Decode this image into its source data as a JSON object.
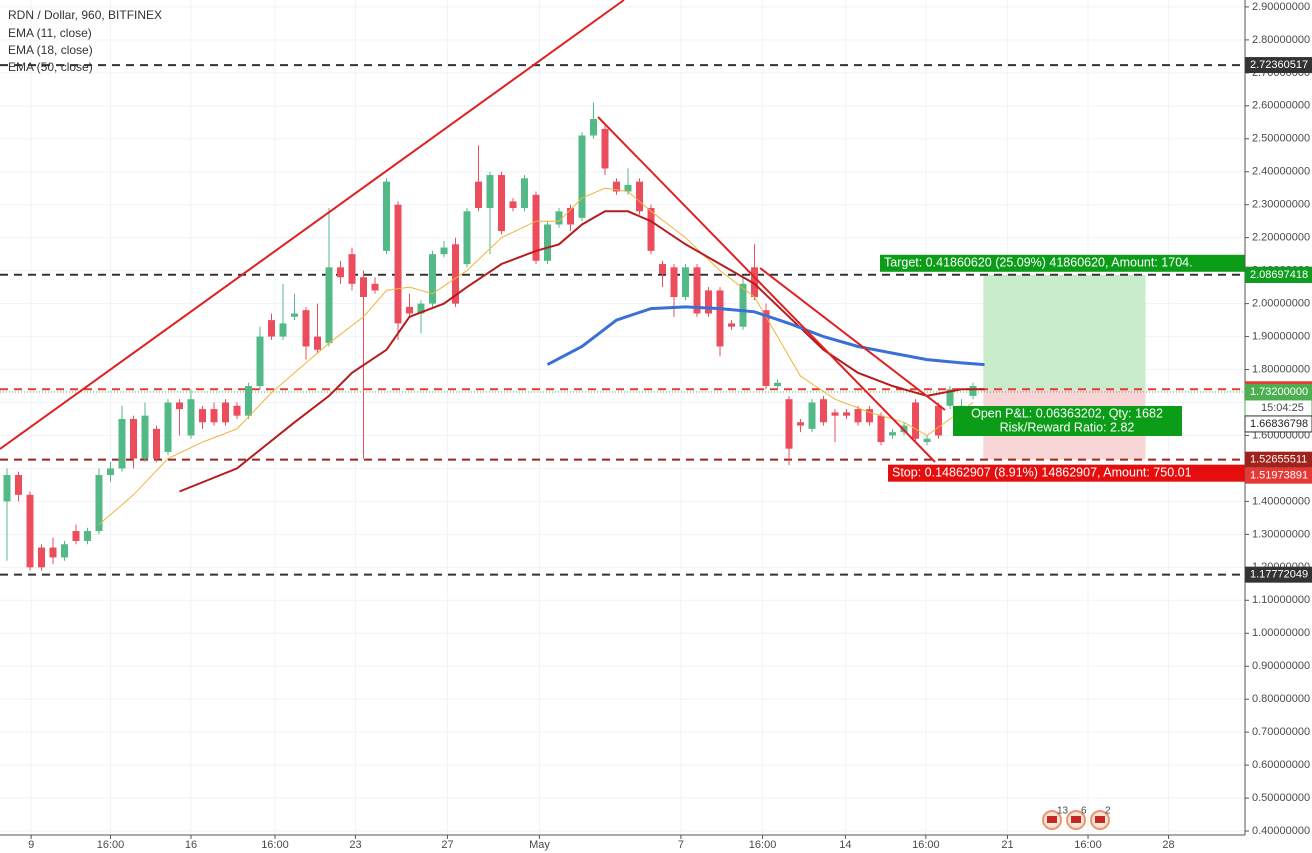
{
  "chart_data": {
    "type": "candlestick",
    "title": "RDN / Dollar, 960, BITFINEX",
    "up_color": "#53b987",
    "down_color": "#eb4d5c",
    "candles": {
      "open": [
        1.4,
        1.48,
        1.42,
        1.26,
        1.26,
        1.23,
        1.31,
        1.28,
        1.31,
        1.48,
        1.5,
        1.65,
        1.53,
        1.62,
        1.55,
        1.7,
        1.6,
        1.68,
        1.68,
        1.7,
        1.69,
        1.66,
        1.75,
        1.95,
        1.9,
        1.96,
        1.98,
        1.9,
        1.88,
        2.11,
        2.15,
        2.08,
        2.06,
        2.16,
        2.3,
        1.99,
        1.97,
        2.0,
        2.15,
        2.18,
        2.12,
        2.37,
        2.29,
        2.39,
        2.31,
        2.29,
        2.33,
        2.13,
        2.24,
        2.29,
        2.26,
        2.51,
        2.53,
        2.37,
        2.34,
        2.37,
        2.29,
        2.12,
        2.11,
        2.02,
        2.11,
        2.04,
        2.04,
        1.94,
        1.93,
        2.11,
        1.98,
        1.75,
        1.71,
        1.64,
        1.62,
        1.71,
        1.67,
        1.67,
        1.68,
        1.68,
        1.66,
        1.6,
        1.61,
        1.7,
        1.58,
        1.69,
        1.69,
        1.67,
        1.72
      ],
      "high": [
        1.5,
        1.49,
        1.43,
        1.27,
        1.29,
        1.28,
        1.33,
        1.32,
        1.5,
        1.52,
        1.69,
        1.66,
        1.7,
        1.63,
        1.71,
        1.71,
        1.74,
        1.69,
        1.7,
        1.71,
        1.7,
        1.76,
        1.93,
        1.97,
        2.06,
        2.03,
        1.99,
        2.0,
        2.29,
        2.13,
        2.17,
        2.1,
        2.08,
        2.38,
        2.31,
        2.03,
        2.01,
        2.16,
        2.19,
        2.2,
        2.29,
        2.48,
        2.4,
        2.4,
        2.32,
        2.39,
        2.34,
        2.25,
        2.29,
        2.3,
        2.52,
        2.61,
        2.54,
        2.38,
        2.41,
        2.38,
        2.3,
        2.13,
        2.12,
        2.12,
        2.12,
        2.05,
        2.05,
        1.95,
        2.08,
        2.18,
        2.0,
        1.77,
        1.72,
        1.65,
        1.71,
        1.72,
        1.68,
        1.68,
        1.69,
        1.69,
        1.67,
        1.62,
        1.64,
        1.71,
        1.6,
        1.7,
        1.75,
        1.71,
        1.76
      ],
      "low": [
        1.22,
        1.4,
        1.19,
        1.19,
        1.21,
        1.22,
        1.27,
        1.27,
        1.3,
        1.46,
        1.49,
        1.5,
        1.52,
        1.52,
        1.54,
        1.6,
        1.59,
        1.62,
        1.63,
        1.63,
        1.65,
        1.65,
        1.74,
        1.89,
        1.89,
        1.95,
        1.83,
        1.85,
        1.87,
        2.06,
        2.04,
        1.53,
        2.03,
        2.15,
        1.89,
        1.96,
        1.91,
        1.99,
        2.14,
        1.99,
        2.11,
        2.28,
        2.15,
        2.21,
        2.28,
        2.28,
        2.12,
        2.12,
        2.23,
        2.22,
        2.25,
        2.5,
        2.39,
        2.33,
        2.33,
        2.27,
        2.15,
        2.05,
        1.96,
        2.01,
        1.96,
        1.96,
        1.84,
        1.92,
        1.92,
        2.01,
        1.74,
        1.74,
        1.51,
        1.61,
        1.61,
        1.63,
        1.58,
        1.65,
        1.63,
        1.63,
        1.57,
        1.59,
        1.6,
        1.58,
        1.57,
        1.59,
        1.68,
        1.66,
        1.71
      ],
      "close": [
        1.48,
        1.42,
        1.2,
        1.2,
        1.23,
        1.27,
        1.28,
        1.31,
        1.48,
        1.5,
        1.65,
        1.53,
        1.66,
        1.53,
        1.7,
        1.68,
        1.71,
        1.64,
        1.64,
        1.64,
        1.66,
        1.75,
        1.9,
        1.9,
        1.94,
        1.97,
        1.87,
        1.86,
        2.11,
        2.08,
        2.06,
        2.02,
        2.04,
        2.37,
        1.94,
        1.97,
        2.0,
        2.15,
        2.17,
        2.0,
        2.28,
        2.29,
        2.39,
        2.22,
        2.29,
        2.38,
        2.13,
        2.24,
        2.28,
        2.24,
        2.51,
        2.56,
        2.41,
        2.34,
        2.36,
        2.28,
        2.16,
        2.09,
        2.02,
        2.11,
        1.97,
        1.97,
        1.87,
        1.93,
        2.06,
        2.02,
        1.75,
        1.76,
        1.56,
        1.63,
        1.7,
        1.64,
        1.66,
        1.66,
        1.64,
        1.64,
        1.58,
        1.61,
        1.63,
        1.59,
        1.59,
        1.6,
        1.74,
        1.69,
        1.75
      ]
    },
    "series": [
      {
        "name": "EMA (11, close)",
        "color": "#f0b43c",
        "x": [
          8,
          11,
          14,
          17,
          20,
          23,
          26,
          28,
          31,
          33,
          35,
          37,
          40,
          43,
          46,
          48,
          50,
          52,
          54,
          56,
          59,
          62,
          65,
          67,
          69,
          72,
          75,
          78,
          80,
          82,
          84
        ],
        "values": [
          1.33,
          1.42,
          1.53,
          1.58,
          1.62,
          1.73,
          1.82,
          1.88,
          1.96,
          2.04,
          2.05,
          2.03,
          2.1,
          2.2,
          2.25,
          2.25,
          2.32,
          2.35,
          2.34,
          2.28,
          2.2,
          2.1,
          2.02,
          1.9,
          1.78,
          1.71,
          1.67,
          1.64,
          1.6,
          1.65,
          1.7
        ]
      },
      {
        "name": "EMA (18, close)",
        "color": "#b71c1c",
        "x": [
          15,
          20,
          25,
          28,
          30,
          33,
          35,
          38,
          40,
          43,
          46,
          48,
          50,
          52,
          54,
          56,
          59,
          62,
          65,
          68,
          71,
          74,
          77,
          80,
          83,
          85
        ],
        "values": [
          1.43,
          1.5,
          1.64,
          1.72,
          1.79,
          1.86,
          1.96,
          2.0,
          2.05,
          2.12,
          2.16,
          2.18,
          2.24,
          2.28,
          2.28,
          2.25,
          2.18,
          2.12,
          2.06,
          1.96,
          1.86,
          1.79,
          1.75,
          1.72,
          1.74,
          1.74
        ]
      },
      {
        "name": "EMA (50, close)",
        "color": "#3a6fd8",
        "x": [
          47,
          50,
          53,
          56,
          59,
          62,
          65,
          68,
          71,
          74,
          77,
          80,
          83,
          85
        ],
        "values": [
          1.815,
          1.87,
          1.95,
          1.985,
          1.99,
          1.985,
          1.975,
          1.94,
          1.9,
          1.87,
          1.85,
          1.83,
          1.82,
          1.815
        ]
      }
    ],
    "xlim": [
      -0.6087,
      107.65
    ],
    "xticks": [
      {
        "value": 2.1,
        "label": "9"
      },
      {
        "value": 9,
        "label": "16:00"
      },
      {
        "value": 16,
        "label": "16"
      },
      {
        "value": 23.3,
        "label": "16:00"
      },
      {
        "value": 30.3,
        "label": "23"
      },
      {
        "value": 38.3,
        "label": "27"
      },
      {
        "value": 46.3,
        "label": "May"
      },
      {
        "value": 58.6,
        "label": "7"
      },
      {
        "value": 65.7,
        "label": "16:00"
      },
      {
        "value": 72.9,
        "label": "14"
      },
      {
        "value": 79.9,
        "label": "16:00"
      },
      {
        "value": 87,
        "label": "21"
      },
      {
        "value": 94,
        "label": "16:00"
      },
      {
        "value": 101,
        "label": "28"
      }
    ],
    "ylim": [
      0.388,
      2.921
    ],
    "yticks": [
      {
        "value": 0.4,
        "label": "0.40000000"
      },
      {
        "value": 0.5,
        "label": "0.50000000"
      },
      {
        "value": 0.6,
        "label": "0.60000000"
      },
      {
        "value": 0.7,
        "label": "0.70000000"
      },
      {
        "value": 0.8,
        "label": "0.80000000"
      },
      {
        "value": 0.9,
        "label": "0.90000000"
      },
      {
        "value": 1.0,
        "label": "1.00000000"
      },
      {
        "value": 1.1,
        "label": "1.10000000"
      },
      {
        "value": 1.2,
        "label": "1.20000000"
      },
      {
        "value": 1.3,
        "label": "1.30000000"
      },
      {
        "value": 1.4,
        "label": "1.40000000"
      },
      {
        "value": 1.5,
        "label": "1.50000000"
      },
      {
        "value": 1.6,
        "label": "1.60000000"
      },
      {
        "value": 1.7,
        "label": "1.70000000"
      },
      {
        "value": 1.8,
        "label": "1.80000000"
      },
      {
        "value": 1.9,
        "label": "1.90000000"
      },
      {
        "value": 2.0,
        "label": "2.00000000"
      },
      {
        "value": 2.1,
        "label": "2.10000000"
      },
      {
        "value": 2.2,
        "label": "2.20000000"
      },
      {
        "value": 2.3,
        "label": "2.30000000"
      },
      {
        "value": 2.4,
        "label": "2.40000000"
      },
      {
        "value": 2.5,
        "label": "2.50000000"
      },
      {
        "value": 2.6,
        "label": "2.60000000"
      },
      {
        "value": 2.7,
        "label": "2.70000000"
      },
      {
        "value": 2.8,
        "label": "2.80000000"
      },
      {
        "value": 2.9,
        "label": "2.90000000"
      }
    ],
    "grid": true,
    "levels": [
      {
        "value": 2.72360517,
        "color": "#333333"
      },
      {
        "value": 2.08738899,
        "color": "#333333"
      },
      {
        "value": 1.74012225,
        "color": "#e53935"
      },
      {
        "value": 1.52655511,
        "color": "#a0221c"
      },
      {
        "value": 1.17772049,
        "color": "#333333"
      }
    ],
    "price_badges": [
      {
        "value": 2.08697418,
        "color": "#0f9d20"
      },
      {
        "value": {
          "value": 1.732,
          "label": "1.73200000"
        },
        "color": "#4caf50"
      },
      {
        "countdown": "15:04:25"
      },
      {
        "value": 1.66836798,
        "color": "#ffffff"
      },
      {
        "value": 1.51973891,
        "color": "#e53935"
      }
    ],
    "position": {
      "x": [
        84.9,
        99
      ],
      "entry": 1.74012225,
      "target": 2.08738899,
      "stop": 1.52655511,
      "target_label": "Target: 0.41860620 (25.09%) 41860620, Amount: 1704.",
      "pnl_label": "Open P&L: 0.06363202, Qty: 1682",
      "ratio_label": "Risk/Reward Ratio: 2.82",
      "stop_label": "Stop: 0.14862907 (8.91%) 14862907, Amount: 750.01"
    },
    "events": [
      13,
      6,
      2
    ]
  }
}
